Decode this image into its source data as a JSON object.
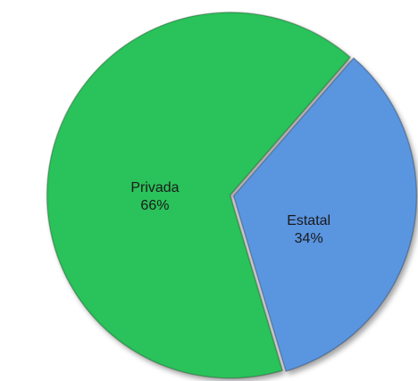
{
  "chart_data": {
    "type": "pie",
    "categories": [
      "Privada",
      "Estatal"
    ],
    "values": [
      66,
      34
    ],
    "value_labels": [
      "66%",
      "34%"
    ],
    "colors": [
      "#2cc25a",
      "#5a95e0"
    ]
  }
}
